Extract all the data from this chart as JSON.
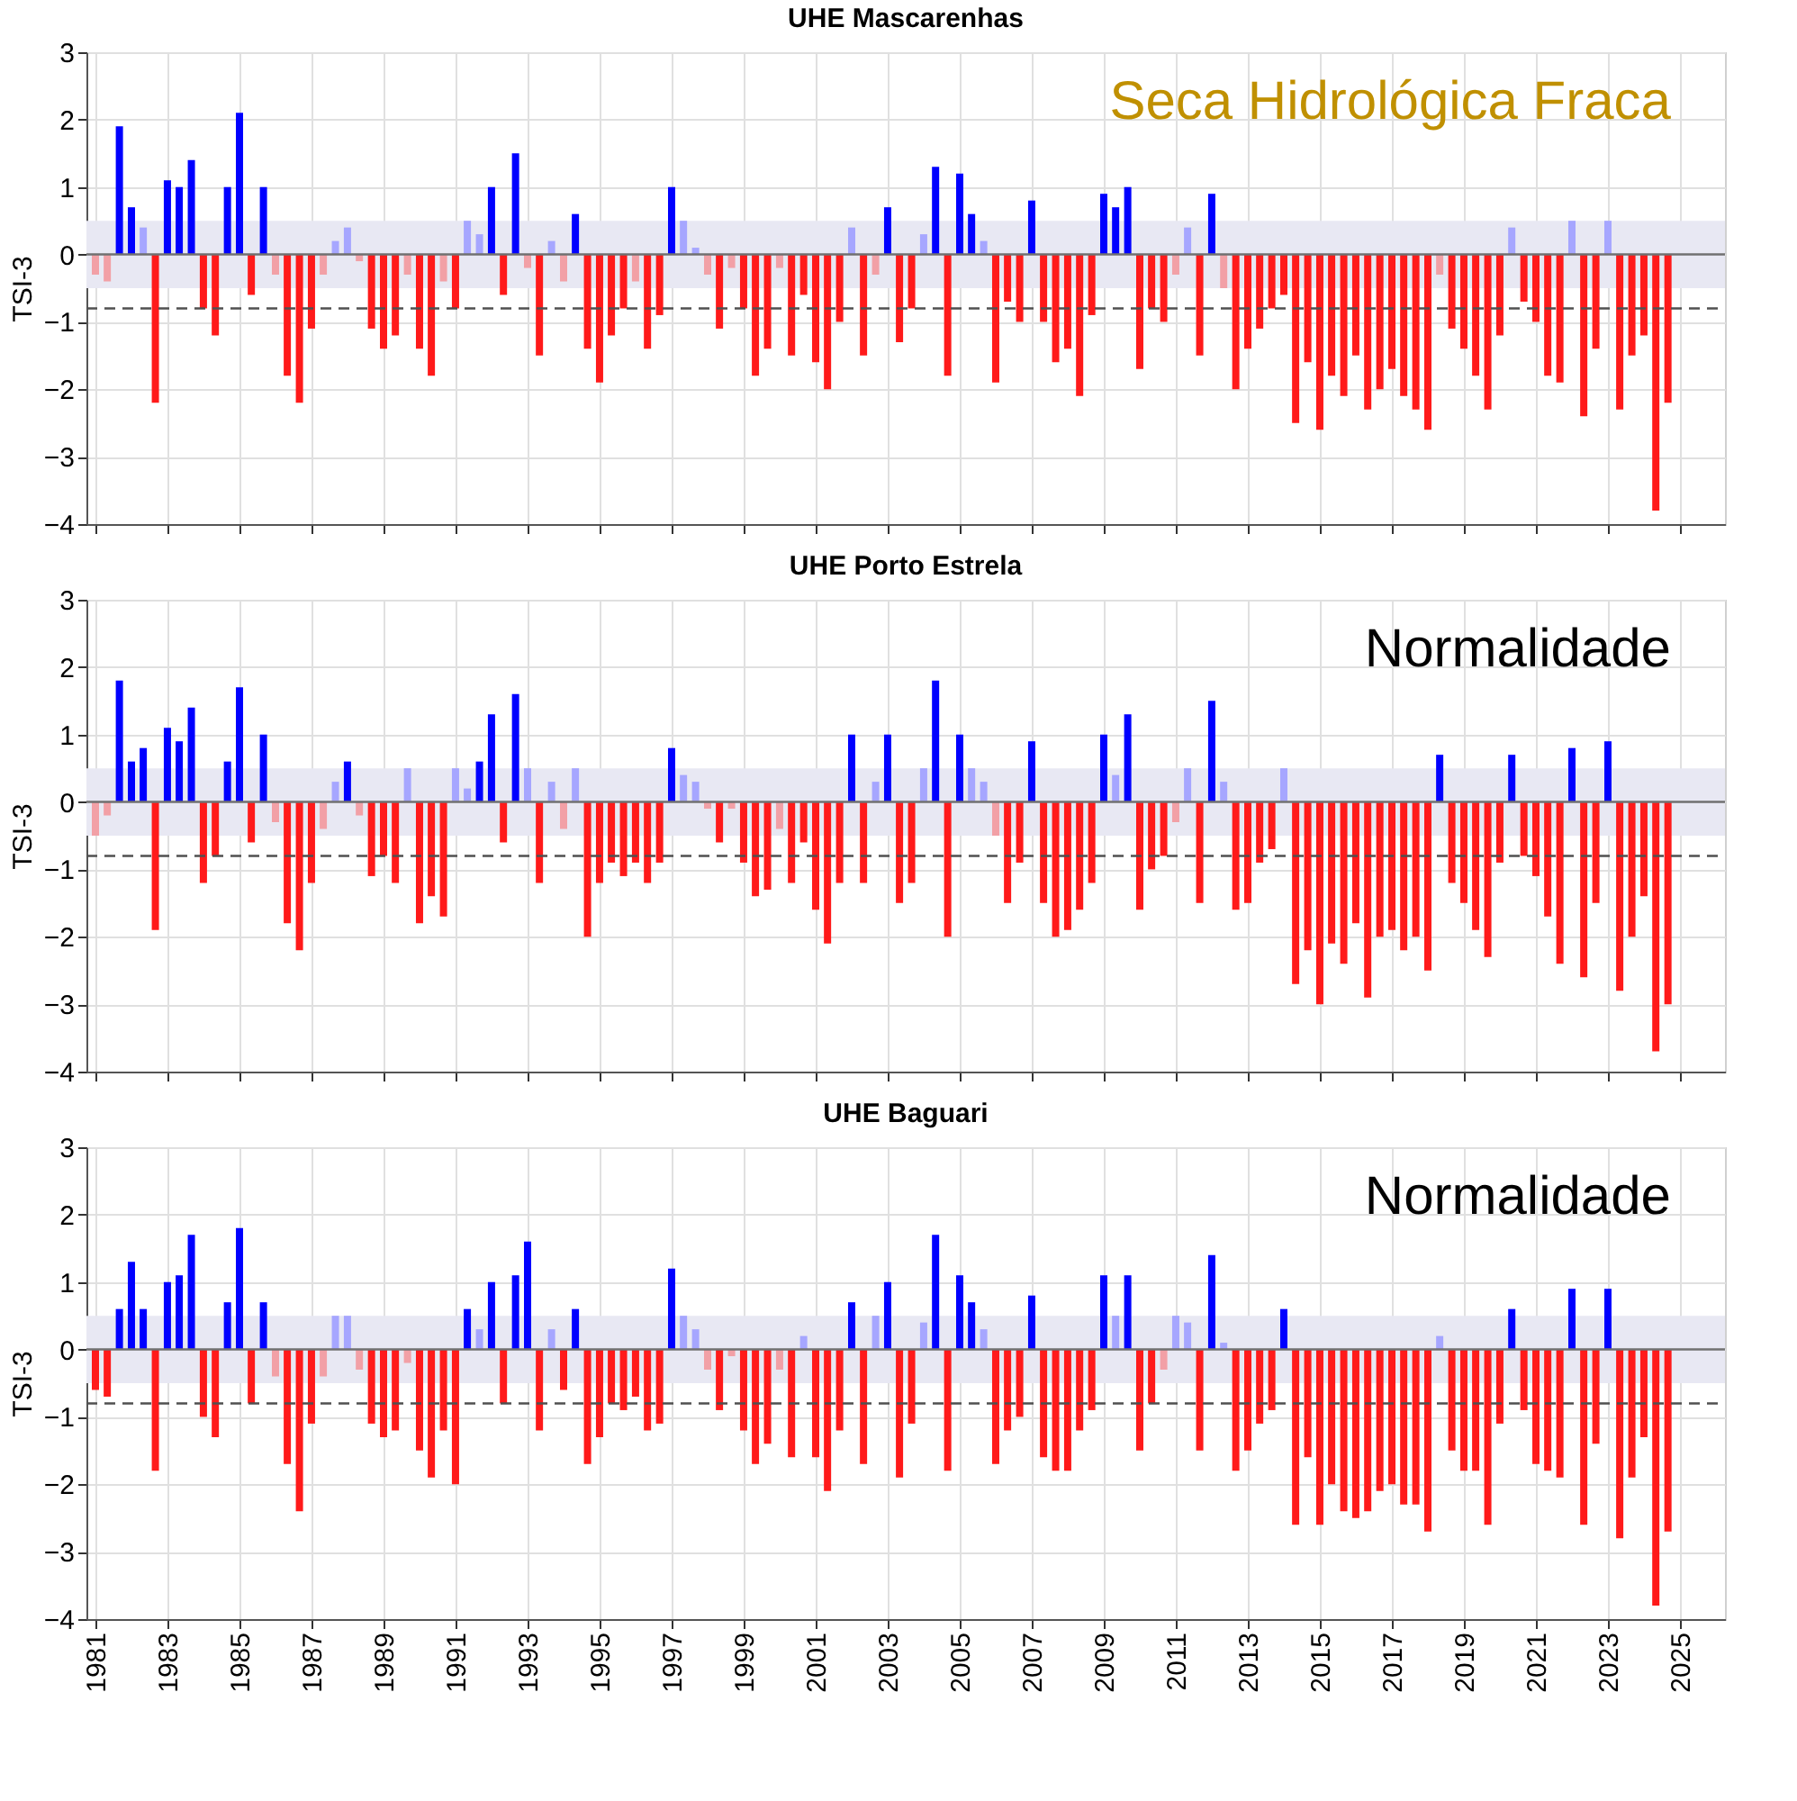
{
  "chart_data": [
    {
      "type": "bar",
      "title": "UHE Mascarenhas",
      "ylabel": "TSI-3",
      "tick_labels": "y",
      "grid": true,
      "xlim": [
        "1981-01-01",
        "2026-01-01"
      ],
      "xticks": [
        "1981",
        "1983",
        "1985",
        "1987",
        "1989",
        "1991",
        "1993",
        "1995",
        "1997",
        "1999",
        "2001",
        "2003",
        "2005",
        "2007",
        "2009",
        "2011",
        "2013",
        "2015",
        "2017",
        "2019",
        "2021",
        "2023",
        "2025"
      ],
      "ylim": [
        -4,
        3
      ],
      "yticks": [
        -4,
        -3,
        -2,
        -1,
        0,
        1,
        2,
        3
      ],
      "bands": [
        {
          "axis": "y",
          "from": -0.5,
          "to": 0.5,
          "color": "#e8e8f3"
        }
      ],
      "ref_lines": [
        {
          "axis": "y",
          "value": 0,
          "color": "#707070",
          "line_style": "solid"
        },
        {
          "axis": "y",
          "value": -0.8,
          "color": "#505050",
          "line_style": "dashed"
        }
      ],
      "annotations": [
        "Seca Hidrológica Fraca"
      ],
      "x": [
        "1981-01",
        "1981-05",
        "1981-09",
        "1982-01",
        "1982-05",
        "1982-09",
        "1983-01",
        "1983-05",
        "1983-09",
        "1984-01",
        "1984-05",
        "1984-09",
        "1985-01",
        "1985-05",
        "1985-09",
        "1986-01",
        "1986-05",
        "1986-09",
        "1987-01",
        "1987-05",
        "1987-09",
        "1988-01",
        "1988-05",
        "1988-09",
        "1989-01",
        "1989-05",
        "1989-09",
        "1990-01",
        "1990-05",
        "1990-09",
        "1991-01",
        "1991-05",
        "1991-09",
        "1992-01",
        "1992-05",
        "1992-09",
        "1993-01",
        "1993-05",
        "1993-09",
        "1994-01",
        "1994-05",
        "1994-09",
        "1995-01",
        "1995-05",
        "1995-09",
        "1996-01",
        "1996-05",
        "1996-09",
        "1997-01",
        "1997-05",
        "1997-09",
        "1998-01",
        "1998-05",
        "1998-09",
        "1999-01",
        "1999-05",
        "1999-09",
        "2000-01",
        "2000-05",
        "2000-09",
        "2001-01",
        "2001-05",
        "2001-09",
        "2002-01",
        "2002-05",
        "2002-09",
        "2003-01",
        "2003-05",
        "2003-09",
        "2004-01",
        "2004-05",
        "2004-09",
        "2005-01",
        "2005-05",
        "2005-09",
        "2006-01",
        "2006-05",
        "2006-09",
        "2007-01",
        "2007-05",
        "2007-09",
        "2008-01",
        "2008-05",
        "2008-09",
        "2009-01",
        "2009-05",
        "2009-09",
        "2010-01",
        "2010-05",
        "2010-09",
        "2011-01",
        "2011-05",
        "2011-09",
        "2012-01",
        "2012-05",
        "2012-09",
        "2013-01",
        "2013-05",
        "2013-09",
        "2014-01",
        "2014-05",
        "2014-09",
        "2015-01",
        "2015-05",
        "2015-09",
        "2016-01",
        "2016-05",
        "2016-09",
        "2017-01",
        "2017-05",
        "2017-09",
        "2018-01",
        "2018-05",
        "2018-09",
        "2019-01",
        "2019-05",
        "2019-09",
        "2020-01",
        "2020-05",
        "2020-09",
        "2021-01",
        "2021-05",
        "2021-09",
        "2022-01",
        "2022-05",
        "2022-09",
        "2023-01",
        "2023-05",
        "2023-09",
        "2024-01",
        "2024-05",
        "2024-09"
      ],
      "values": [
        -0.3,
        -0.4,
        1.9,
        0.7,
        0.4,
        -2.2,
        1.1,
        1.0,
        1.4,
        -0.8,
        -1.2,
        1.0,
        2.1,
        -0.6,
        1.0,
        -0.3,
        -1.8,
        -2.2,
        -1.1,
        -0.3,
        0.2,
        0.4,
        -0.1,
        -1.1,
        -1.4,
        -1.2,
        -0.3,
        -1.4,
        -1.8,
        -0.4,
        -0.8,
        0.5,
        0.3,
        1.0,
        -0.6,
        1.5,
        -0.2,
        -1.5,
        0.2,
        -0.4,
        0.6,
        -1.4,
        -1.9,
        -1.2,
        -0.8,
        -0.4,
        -1.4,
        -0.9,
        1.0,
        0.5,
        0.1,
        -0.3,
        -1.1,
        -0.2,
        -0.8,
        -1.8,
        -1.4,
        -0.2,
        -1.5,
        -0.6,
        -1.6,
        -2.0,
        -1.0,
        0.4,
        -1.5,
        -0.3,
        0.7,
        -1.3,
        -0.8,
        0.3,
        1.3,
        -1.8,
        1.2,
        0.6,
        0.2,
        -1.9,
        -0.7,
        -1.0,
        0.8,
        -1.0,
        -1.6,
        -1.4,
        -2.1,
        -0.9,
        0.9,
        0.7,
        1.0,
        -1.7,
        -0.8,
        -1.0,
        -0.3,
        0.4,
        -1.5,
        0.9,
        -0.5,
        -2.0,
        -1.4,
        -1.1,
        -0.8,
        -0.6,
        -2.5,
        -1.6,
        -2.6,
        -1.8,
        -2.1,
        -1.5,
        -2.3,
        -2.0,
        -1.7,
        -2.1,
        -2.3,
        -2.6,
        -0.3,
        -1.1,
        -1.4,
        -1.8,
        -2.3,
        -1.2,
        0.4,
        -0.7,
        -1.0,
        -1.8,
        -1.9,
        0.5,
        -2.4,
        -1.4,
        0.5,
        -2.3,
        -1.5,
        -1.2,
        -3.8,
        -2.2
      ],
      "colors": [
        "#f2a0a6",
        "#f2a0a6",
        "#0000ff",
        "#0000ff",
        "#a6a6ff",
        "#ff1a1a",
        "#0000ff",
        "#0000ff",
        "#0000ff",
        "#ff1a1a",
        "#ff1a1a",
        "#0000ff",
        "#0000ff",
        "#ff1a1a",
        "#0000ff",
        "#f2a0a6",
        "#ff1a1a",
        "#ff1a1a",
        "#ff1a1a",
        "#f2a0a6",
        "#a6a6ff",
        "#a6a6ff",
        "#f2a0a6",
        "#ff1a1a",
        "#ff1a1a",
        "#ff1a1a",
        "#f2a0a6",
        "#ff1a1a",
        "#ff1a1a",
        "#f2a0a6",
        "#ff1a1a",
        "#a6a6ff",
        "#a6a6ff",
        "#0000ff",
        "#ff1a1a",
        "#0000ff",
        "#f2a0a6",
        "#ff1a1a",
        "#a6a6ff",
        "#f2a0a6",
        "#0000ff",
        "#ff1a1a",
        "#ff1a1a",
        "#ff1a1a",
        "#ff1a1a",
        "#f2a0a6",
        "#ff1a1a",
        "#ff1a1a",
        "#0000ff",
        "#a6a6ff",
        "#a6a6ff",
        "#f2a0a6",
        "#ff1a1a",
        "#f2a0a6",
        "#ff1a1a",
        "#ff1a1a",
        "#ff1a1a",
        "#f2a0a6",
        "#ff1a1a",
        "#ff1a1a",
        "#ff1a1a",
        "#ff1a1a",
        "#ff1a1a",
        "#a6a6ff",
        "#ff1a1a",
        "#f2a0a6",
        "#0000ff",
        "#ff1a1a",
        "#ff1a1a",
        "#a6a6ff",
        "#0000ff",
        "#ff1a1a",
        "#0000ff",
        "#0000ff",
        "#a6a6ff",
        "#ff1a1a",
        "#ff1a1a",
        "#ff1a1a",
        "#0000ff",
        "#ff1a1a",
        "#ff1a1a",
        "#ff1a1a",
        "#ff1a1a",
        "#ff1a1a",
        "#0000ff",
        "#0000ff",
        "#0000ff",
        "#ff1a1a",
        "#ff1a1a",
        "#ff1a1a",
        "#f2a0a6",
        "#a6a6ff",
        "#ff1a1a",
        "#0000ff",
        "#f2a0a6",
        "#ff1a1a",
        "#ff1a1a",
        "#ff1a1a",
        "#ff1a1a",
        "#ff1a1a",
        "#ff1a1a",
        "#ff1a1a",
        "#ff1a1a",
        "#ff1a1a",
        "#ff1a1a",
        "#ff1a1a",
        "#ff1a1a",
        "#ff1a1a",
        "#ff1a1a",
        "#ff1a1a",
        "#ff1a1a",
        "#ff1a1a",
        "#f2a0a6",
        "#ff1a1a",
        "#ff1a1a",
        "#ff1a1a",
        "#ff1a1a",
        "#ff1a1a",
        "#a6a6ff",
        "#ff1a1a",
        "#ff1a1a",
        "#ff1a1a",
        "#ff1a1a",
        "#a6a6ff",
        "#ff1a1a",
        "#ff1a1a",
        "#a6a6ff",
        "#ff1a1a",
        "#ff1a1a",
        "#ff1a1a",
        "#ff1a1a",
        "#ff1a1a"
      ]
    },
    {
      "type": "bar",
      "title": "UHE Porto Estrela",
      "ylabel": "TSI-3",
      "tick_labels": "y",
      "grid": true,
      "xlim": [
        "1981-01-01",
        "2026-01-01"
      ],
      "xticks": [
        "1981",
        "1983",
        "1985",
        "1987",
        "1989",
        "1991",
        "1993",
        "1995",
        "1997",
        "1999",
        "2001",
        "2003",
        "2005",
        "2007",
        "2009",
        "2011",
        "2013",
        "2015",
        "2017",
        "2019",
        "2021",
        "2023",
        "2025"
      ],
      "ylim": [
        -4,
        3
      ],
      "yticks": [
        -4,
        -3,
        -2,
        -1,
        0,
        1,
        2,
        3
      ],
      "bands": [
        {
          "axis": "y",
          "from": -0.5,
          "to": 0.5,
          "color": "#e8e8f3"
        }
      ],
      "ref_lines": [
        {
          "axis": "y",
          "value": 0,
          "color": "#707070",
          "line_style": "solid"
        },
        {
          "axis": "y",
          "value": -0.8,
          "color": "#505050",
          "line_style": "dashed"
        }
      ],
      "annotations": [
        "Normalidade"
      ],
      "x": [
        "1981-01",
        "1981-05",
        "1981-09",
        "1982-01",
        "1982-05",
        "1982-09",
        "1983-01",
        "1983-05",
        "1983-09",
        "1984-01",
        "1984-05",
        "1984-09",
        "1985-01",
        "1985-05",
        "1985-09",
        "1986-01",
        "1986-05",
        "1986-09",
        "1987-01",
        "1987-05",
        "1987-09",
        "1988-01",
        "1988-05",
        "1988-09",
        "1989-01",
        "1989-05",
        "1989-09",
        "1990-01",
        "1990-05",
        "1990-09",
        "1991-01",
        "1991-05",
        "1991-09",
        "1992-01",
        "1992-05",
        "1992-09",
        "1993-01",
        "1993-05",
        "1993-09",
        "1994-01",
        "1994-05",
        "1994-09",
        "1995-01",
        "1995-05",
        "1995-09",
        "1996-01",
        "1996-05",
        "1996-09",
        "1997-01",
        "1997-05",
        "1997-09",
        "1998-01",
        "1998-05",
        "1998-09",
        "1999-01",
        "1999-05",
        "1999-09",
        "2000-01",
        "2000-05",
        "2000-09",
        "2001-01",
        "2001-05",
        "2001-09",
        "2002-01",
        "2002-05",
        "2002-09",
        "2003-01",
        "2003-05",
        "2003-09",
        "2004-01",
        "2004-05",
        "2004-09",
        "2005-01",
        "2005-05",
        "2005-09",
        "2006-01",
        "2006-05",
        "2006-09",
        "2007-01",
        "2007-05",
        "2007-09",
        "2008-01",
        "2008-05",
        "2008-09",
        "2009-01",
        "2009-05",
        "2009-09",
        "2010-01",
        "2010-05",
        "2010-09",
        "2011-01",
        "2011-05",
        "2011-09",
        "2012-01",
        "2012-05",
        "2012-09",
        "2013-01",
        "2013-05",
        "2013-09",
        "2014-01",
        "2014-05",
        "2014-09",
        "2015-01",
        "2015-05",
        "2015-09",
        "2016-01",
        "2016-05",
        "2016-09",
        "2017-01",
        "2017-05",
        "2017-09",
        "2018-01",
        "2018-05",
        "2018-09",
        "2019-01",
        "2019-05",
        "2019-09",
        "2020-01",
        "2020-05",
        "2020-09",
        "2021-01",
        "2021-05",
        "2021-09",
        "2022-01",
        "2022-05",
        "2022-09",
        "2023-01",
        "2023-05",
        "2023-09",
        "2024-01",
        "2024-05",
        "2024-09"
      ],
      "values": [
        -0.5,
        -0.2,
        1.8,
        0.6,
        0.8,
        -1.9,
        1.1,
        0.9,
        1.4,
        -1.2,
        -0.8,
        0.6,
        1.7,
        -0.6,
        1.0,
        -0.3,
        -1.8,
        -2.2,
        -1.2,
        -0.4,
        0.3,
        0.6,
        -0.2,
        -1.1,
        -0.8,
        -1.2,
        0.5,
        -1.8,
        -1.4,
        -1.7,
        0.5,
        0.2,
        0.6,
        1.3,
        -0.6,
        1.6,
        0.5,
        -1.2,
        0.3,
        -0.4,
        0.5,
        -2.0,
        -1.2,
        -0.9,
        -1.1,
        -0.9,
        -1.2,
        -0.9,
        0.8,
        0.4,
        0.3,
        -0.1,
        -0.6,
        -0.1,
        -0.9,
        -1.4,
        -1.3,
        -0.4,
        -1.2,
        -0.6,
        -1.6,
        -2.1,
        -1.2,
        1.0,
        -1.2,
        0.3,
        1.0,
        -1.5,
        -1.2,
        0.5,
        1.8,
        -2.0,
        1.0,
        0.5,
        0.3,
        -0.5,
        -1.5,
        -0.9,
        0.9,
        -1.5,
        -2.0,
        -1.9,
        -1.6,
        -1.2,
        1.0,
        0.4,
        1.3,
        -1.6,
        -1.0,
        -0.8,
        -0.3,
        0.5,
        -1.5,
        1.5,
        0.3,
        -1.6,
        -1.5,
        -0.9,
        -0.7,
        0.5,
        -2.7,
        -2.2,
        -3.0,
        -2.1,
        -2.4,
        -1.8,
        -2.9,
        -2.0,
        -1.9,
        -2.2,
        -2.0,
        -2.5,
        0.7,
        -1.2,
        -1.5,
        -1.9,
        -2.3,
        -0.9,
        0.7,
        -0.8,
        -1.1,
        -1.7,
        -2.4,
        0.8,
        -2.6,
        -1.5,
        0.9,
        -2.8,
        -2.0,
        -1.4,
        -3.7,
        -3.0
      ],
      "colors": [
        "#f2a0a6",
        "#f2a0a6",
        "#0000ff",
        "#0000ff",
        "#0000ff",
        "#ff1a1a",
        "#0000ff",
        "#0000ff",
        "#0000ff",
        "#ff1a1a",
        "#ff1a1a",
        "#0000ff",
        "#0000ff",
        "#ff1a1a",
        "#0000ff",
        "#f2a0a6",
        "#ff1a1a",
        "#ff1a1a",
        "#ff1a1a",
        "#f2a0a6",
        "#a6a6ff",
        "#0000ff",
        "#f2a0a6",
        "#ff1a1a",
        "#ff1a1a",
        "#ff1a1a",
        "#a6a6ff",
        "#ff1a1a",
        "#ff1a1a",
        "#ff1a1a",
        "#a6a6ff",
        "#a6a6ff",
        "#0000ff",
        "#0000ff",
        "#ff1a1a",
        "#0000ff",
        "#a6a6ff",
        "#ff1a1a",
        "#a6a6ff",
        "#f2a0a6",
        "#a6a6ff",
        "#ff1a1a",
        "#ff1a1a",
        "#ff1a1a",
        "#ff1a1a",
        "#ff1a1a",
        "#ff1a1a",
        "#ff1a1a",
        "#0000ff",
        "#a6a6ff",
        "#a6a6ff",
        "#f2a0a6",
        "#ff1a1a",
        "#f2a0a6",
        "#ff1a1a",
        "#ff1a1a",
        "#ff1a1a",
        "#f2a0a6",
        "#ff1a1a",
        "#ff1a1a",
        "#ff1a1a",
        "#ff1a1a",
        "#ff1a1a",
        "#0000ff",
        "#ff1a1a",
        "#a6a6ff",
        "#0000ff",
        "#ff1a1a",
        "#ff1a1a",
        "#a6a6ff",
        "#0000ff",
        "#ff1a1a",
        "#0000ff",
        "#a6a6ff",
        "#a6a6ff",
        "#f2a0a6",
        "#ff1a1a",
        "#ff1a1a",
        "#0000ff",
        "#ff1a1a",
        "#ff1a1a",
        "#ff1a1a",
        "#ff1a1a",
        "#ff1a1a",
        "#0000ff",
        "#a6a6ff",
        "#0000ff",
        "#ff1a1a",
        "#ff1a1a",
        "#ff1a1a",
        "#f2a0a6",
        "#a6a6ff",
        "#ff1a1a",
        "#0000ff",
        "#a6a6ff",
        "#ff1a1a",
        "#ff1a1a",
        "#ff1a1a",
        "#ff1a1a",
        "#a6a6ff",
        "#ff1a1a",
        "#ff1a1a",
        "#ff1a1a",
        "#ff1a1a",
        "#ff1a1a",
        "#ff1a1a",
        "#ff1a1a",
        "#ff1a1a",
        "#ff1a1a",
        "#ff1a1a",
        "#ff1a1a",
        "#ff1a1a",
        "#0000ff",
        "#ff1a1a",
        "#ff1a1a",
        "#ff1a1a",
        "#ff1a1a",
        "#ff1a1a",
        "#0000ff",
        "#ff1a1a",
        "#ff1a1a",
        "#ff1a1a",
        "#ff1a1a",
        "#0000ff",
        "#ff1a1a",
        "#ff1a1a",
        "#0000ff",
        "#ff1a1a",
        "#ff1a1a",
        "#ff1a1a",
        "#ff1a1a",
        "#ff1a1a"
      ]
    },
    {
      "type": "bar",
      "title": "UHE Baguari",
      "ylabel": "TSI-3",
      "grid": true,
      "xlim": [
        "1981-01-01",
        "2026-01-01"
      ],
      "xticks": [
        "1981",
        "1983",
        "1985",
        "1987",
        "1989",
        "1991",
        "1993",
        "1995",
        "1997",
        "1999",
        "2001",
        "2003",
        "2005",
        "2007",
        "2009",
        "2011",
        "2013",
        "2015",
        "2017",
        "2019",
        "2021",
        "2023",
        "2025"
      ],
      "ylim": [
        -4,
        3
      ],
      "yticks": [
        -4,
        -3,
        -2,
        -1,
        0,
        1,
        2,
        3
      ],
      "bands": [
        {
          "axis": "y",
          "from": -0.5,
          "to": 0.5,
          "color": "#e8e8f3"
        }
      ],
      "ref_lines": [
        {
          "axis": "y",
          "value": 0,
          "color": "#707070",
          "line_style": "solid"
        },
        {
          "axis": "y",
          "value": -0.8,
          "color": "#505050",
          "line_style": "dashed"
        }
      ],
      "annotations": [
        "Normalidade"
      ],
      "x": [
        "1981-01",
        "1981-05",
        "1981-09",
        "1982-01",
        "1982-05",
        "1982-09",
        "1983-01",
        "1983-05",
        "1983-09",
        "1984-01",
        "1984-05",
        "1984-09",
        "1985-01",
        "1985-05",
        "1985-09",
        "1986-01",
        "1986-05",
        "1986-09",
        "1987-01",
        "1987-05",
        "1987-09",
        "1988-01",
        "1988-05",
        "1988-09",
        "1989-01",
        "1989-05",
        "1989-09",
        "1990-01",
        "1990-05",
        "1990-09",
        "1991-01",
        "1991-05",
        "1991-09",
        "1992-01",
        "1992-05",
        "1992-09",
        "1993-01",
        "1993-05",
        "1993-09",
        "1994-01",
        "1994-05",
        "1994-09",
        "1995-01",
        "1995-05",
        "1995-09",
        "1996-01",
        "1996-05",
        "1996-09",
        "1997-01",
        "1997-05",
        "1997-09",
        "1998-01",
        "1998-05",
        "1998-09",
        "1999-01",
        "1999-05",
        "1999-09",
        "2000-01",
        "2000-05",
        "2000-09",
        "2001-01",
        "2001-05",
        "2001-09",
        "2002-01",
        "2002-05",
        "2002-09",
        "2003-01",
        "2003-05",
        "2003-09",
        "2004-01",
        "2004-05",
        "2004-09",
        "2005-01",
        "2005-05",
        "2005-09",
        "2006-01",
        "2006-05",
        "2006-09",
        "2007-01",
        "2007-05",
        "2007-09",
        "2008-01",
        "2008-05",
        "2008-09",
        "2009-01",
        "2009-05",
        "2009-09",
        "2010-01",
        "2010-05",
        "2010-09",
        "2011-01",
        "2011-05",
        "2011-09",
        "2012-01",
        "2012-05",
        "2012-09",
        "2013-01",
        "2013-05",
        "2013-09",
        "2014-01",
        "2014-05",
        "2014-09",
        "2015-01",
        "2015-05",
        "2015-09",
        "2016-01",
        "2016-05",
        "2016-09",
        "2017-01",
        "2017-05",
        "2017-09",
        "2018-01",
        "2018-05",
        "2018-09",
        "2019-01",
        "2019-05",
        "2019-09",
        "2020-01",
        "2020-05",
        "2020-09",
        "2021-01",
        "2021-05",
        "2021-09",
        "2022-01",
        "2022-05",
        "2022-09",
        "2023-01",
        "2023-05",
        "2023-09",
        "2024-01",
        "2024-05",
        "2024-09"
      ],
      "values": [
        -0.6,
        -0.7,
        0.6,
        1.3,
        0.6,
        -1.8,
        1.0,
        1.1,
        1.7,
        -1.0,
        -1.3,
        0.7,
        1.8,
        -0.8,
        0.7,
        -0.4,
        -1.7,
        -2.4,
        -1.1,
        -0.4,
        0.5,
        0.5,
        -0.3,
        -1.1,
        -1.3,
        -1.2,
        -0.2,
        -1.5,
        -1.9,
        -1.2,
        -2.0,
        0.6,
        0.3,
        1.0,
        -0.8,
        1.1,
        1.6,
        -1.2,
        0.3,
        -0.6,
        0.6,
        -1.7,
        -1.3,
        -0.8,
        -0.9,
        -0.7,
        -1.2,
        -1.1,
        1.2,
        0.5,
        0.3,
        -0.3,
        -0.9,
        -0.1,
        -1.2,
        -1.7,
        -1.4,
        -0.3,
        -1.6,
        0.2,
        -1.6,
        -2.1,
        -1.2,
        0.7,
        -1.7,
        0.5,
        1.0,
        -1.9,
        -1.1,
        0.4,
        1.7,
        -1.8,
        1.1,
        0.7,
        0.3,
        -1.7,
        -1.2,
        -1.0,
        0.8,
        -1.6,
        -1.8,
        -1.8,
        -1.2,
        -0.9,
        1.1,
        0.5,
        1.1,
        -1.5,
        -0.8,
        -0.3,
        0.5,
        0.4,
        -1.5,
        1.4,
        0.1,
        -1.8,
        -1.5,
        -1.1,
        -0.9,
        0.6,
        -2.6,
        -1.6,
        -2.6,
        -2.0,
        -2.4,
        -2.5,
        -2.4,
        -2.1,
        -2.0,
        -2.3,
        -2.3,
        -2.7,
        0.2,
        -1.5,
        -1.8,
        -1.8,
        -2.6,
        -1.1,
        0.6,
        -0.9,
        -1.7,
        -1.8,
        -1.9,
        0.9,
        -2.6,
        -1.4,
        0.9,
        -2.8,
        -1.9,
        -1.3,
        -3.8,
        -2.7
      ],
      "colors": [
        "#ff1a1a",
        "#ff1a1a",
        "#0000ff",
        "#0000ff",
        "#0000ff",
        "#ff1a1a",
        "#0000ff",
        "#0000ff",
        "#0000ff",
        "#ff1a1a",
        "#ff1a1a",
        "#0000ff",
        "#0000ff",
        "#ff1a1a",
        "#0000ff",
        "#f2a0a6",
        "#ff1a1a",
        "#ff1a1a",
        "#ff1a1a",
        "#f2a0a6",
        "#a6a6ff",
        "#a6a6ff",
        "#f2a0a6",
        "#ff1a1a",
        "#ff1a1a",
        "#ff1a1a",
        "#f2a0a6",
        "#ff1a1a",
        "#ff1a1a",
        "#ff1a1a",
        "#ff1a1a",
        "#0000ff",
        "#a6a6ff",
        "#0000ff",
        "#ff1a1a",
        "#0000ff",
        "#0000ff",
        "#ff1a1a",
        "#a6a6ff",
        "#ff1a1a",
        "#0000ff",
        "#ff1a1a",
        "#ff1a1a",
        "#ff1a1a",
        "#ff1a1a",
        "#ff1a1a",
        "#ff1a1a",
        "#ff1a1a",
        "#0000ff",
        "#a6a6ff",
        "#a6a6ff",
        "#f2a0a6",
        "#ff1a1a",
        "#f2a0a6",
        "#ff1a1a",
        "#ff1a1a",
        "#ff1a1a",
        "#f2a0a6",
        "#ff1a1a",
        "#a6a6ff",
        "#ff1a1a",
        "#ff1a1a",
        "#ff1a1a",
        "#0000ff",
        "#ff1a1a",
        "#a6a6ff",
        "#0000ff",
        "#ff1a1a",
        "#ff1a1a",
        "#a6a6ff",
        "#0000ff",
        "#ff1a1a",
        "#0000ff",
        "#0000ff",
        "#a6a6ff",
        "#ff1a1a",
        "#ff1a1a",
        "#ff1a1a",
        "#0000ff",
        "#ff1a1a",
        "#ff1a1a",
        "#ff1a1a",
        "#ff1a1a",
        "#ff1a1a",
        "#0000ff",
        "#a6a6ff",
        "#0000ff",
        "#ff1a1a",
        "#ff1a1a",
        "#f2a0a6",
        "#a6a6ff",
        "#a6a6ff",
        "#ff1a1a",
        "#0000ff",
        "#a6a6ff",
        "#ff1a1a",
        "#ff1a1a",
        "#ff1a1a",
        "#ff1a1a",
        "#0000ff",
        "#ff1a1a",
        "#ff1a1a",
        "#ff1a1a",
        "#ff1a1a",
        "#ff1a1a",
        "#ff1a1a",
        "#ff1a1a",
        "#ff1a1a",
        "#ff1a1a",
        "#ff1a1a",
        "#ff1a1a",
        "#ff1a1a",
        "#a6a6ff",
        "#ff1a1a",
        "#ff1a1a",
        "#ff1a1a",
        "#ff1a1a",
        "#ff1a1a",
        "#0000ff",
        "#ff1a1a",
        "#ff1a1a",
        "#ff1a1a",
        "#ff1a1a",
        "#0000ff",
        "#ff1a1a",
        "#ff1a1a",
        "#0000ff",
        "#ff1a1a",
        "#ff1a1a",
        "#ff1a1a",
        "#ff1a1a",
        "#ff1a1a"
      ]
    }
  ]
}
